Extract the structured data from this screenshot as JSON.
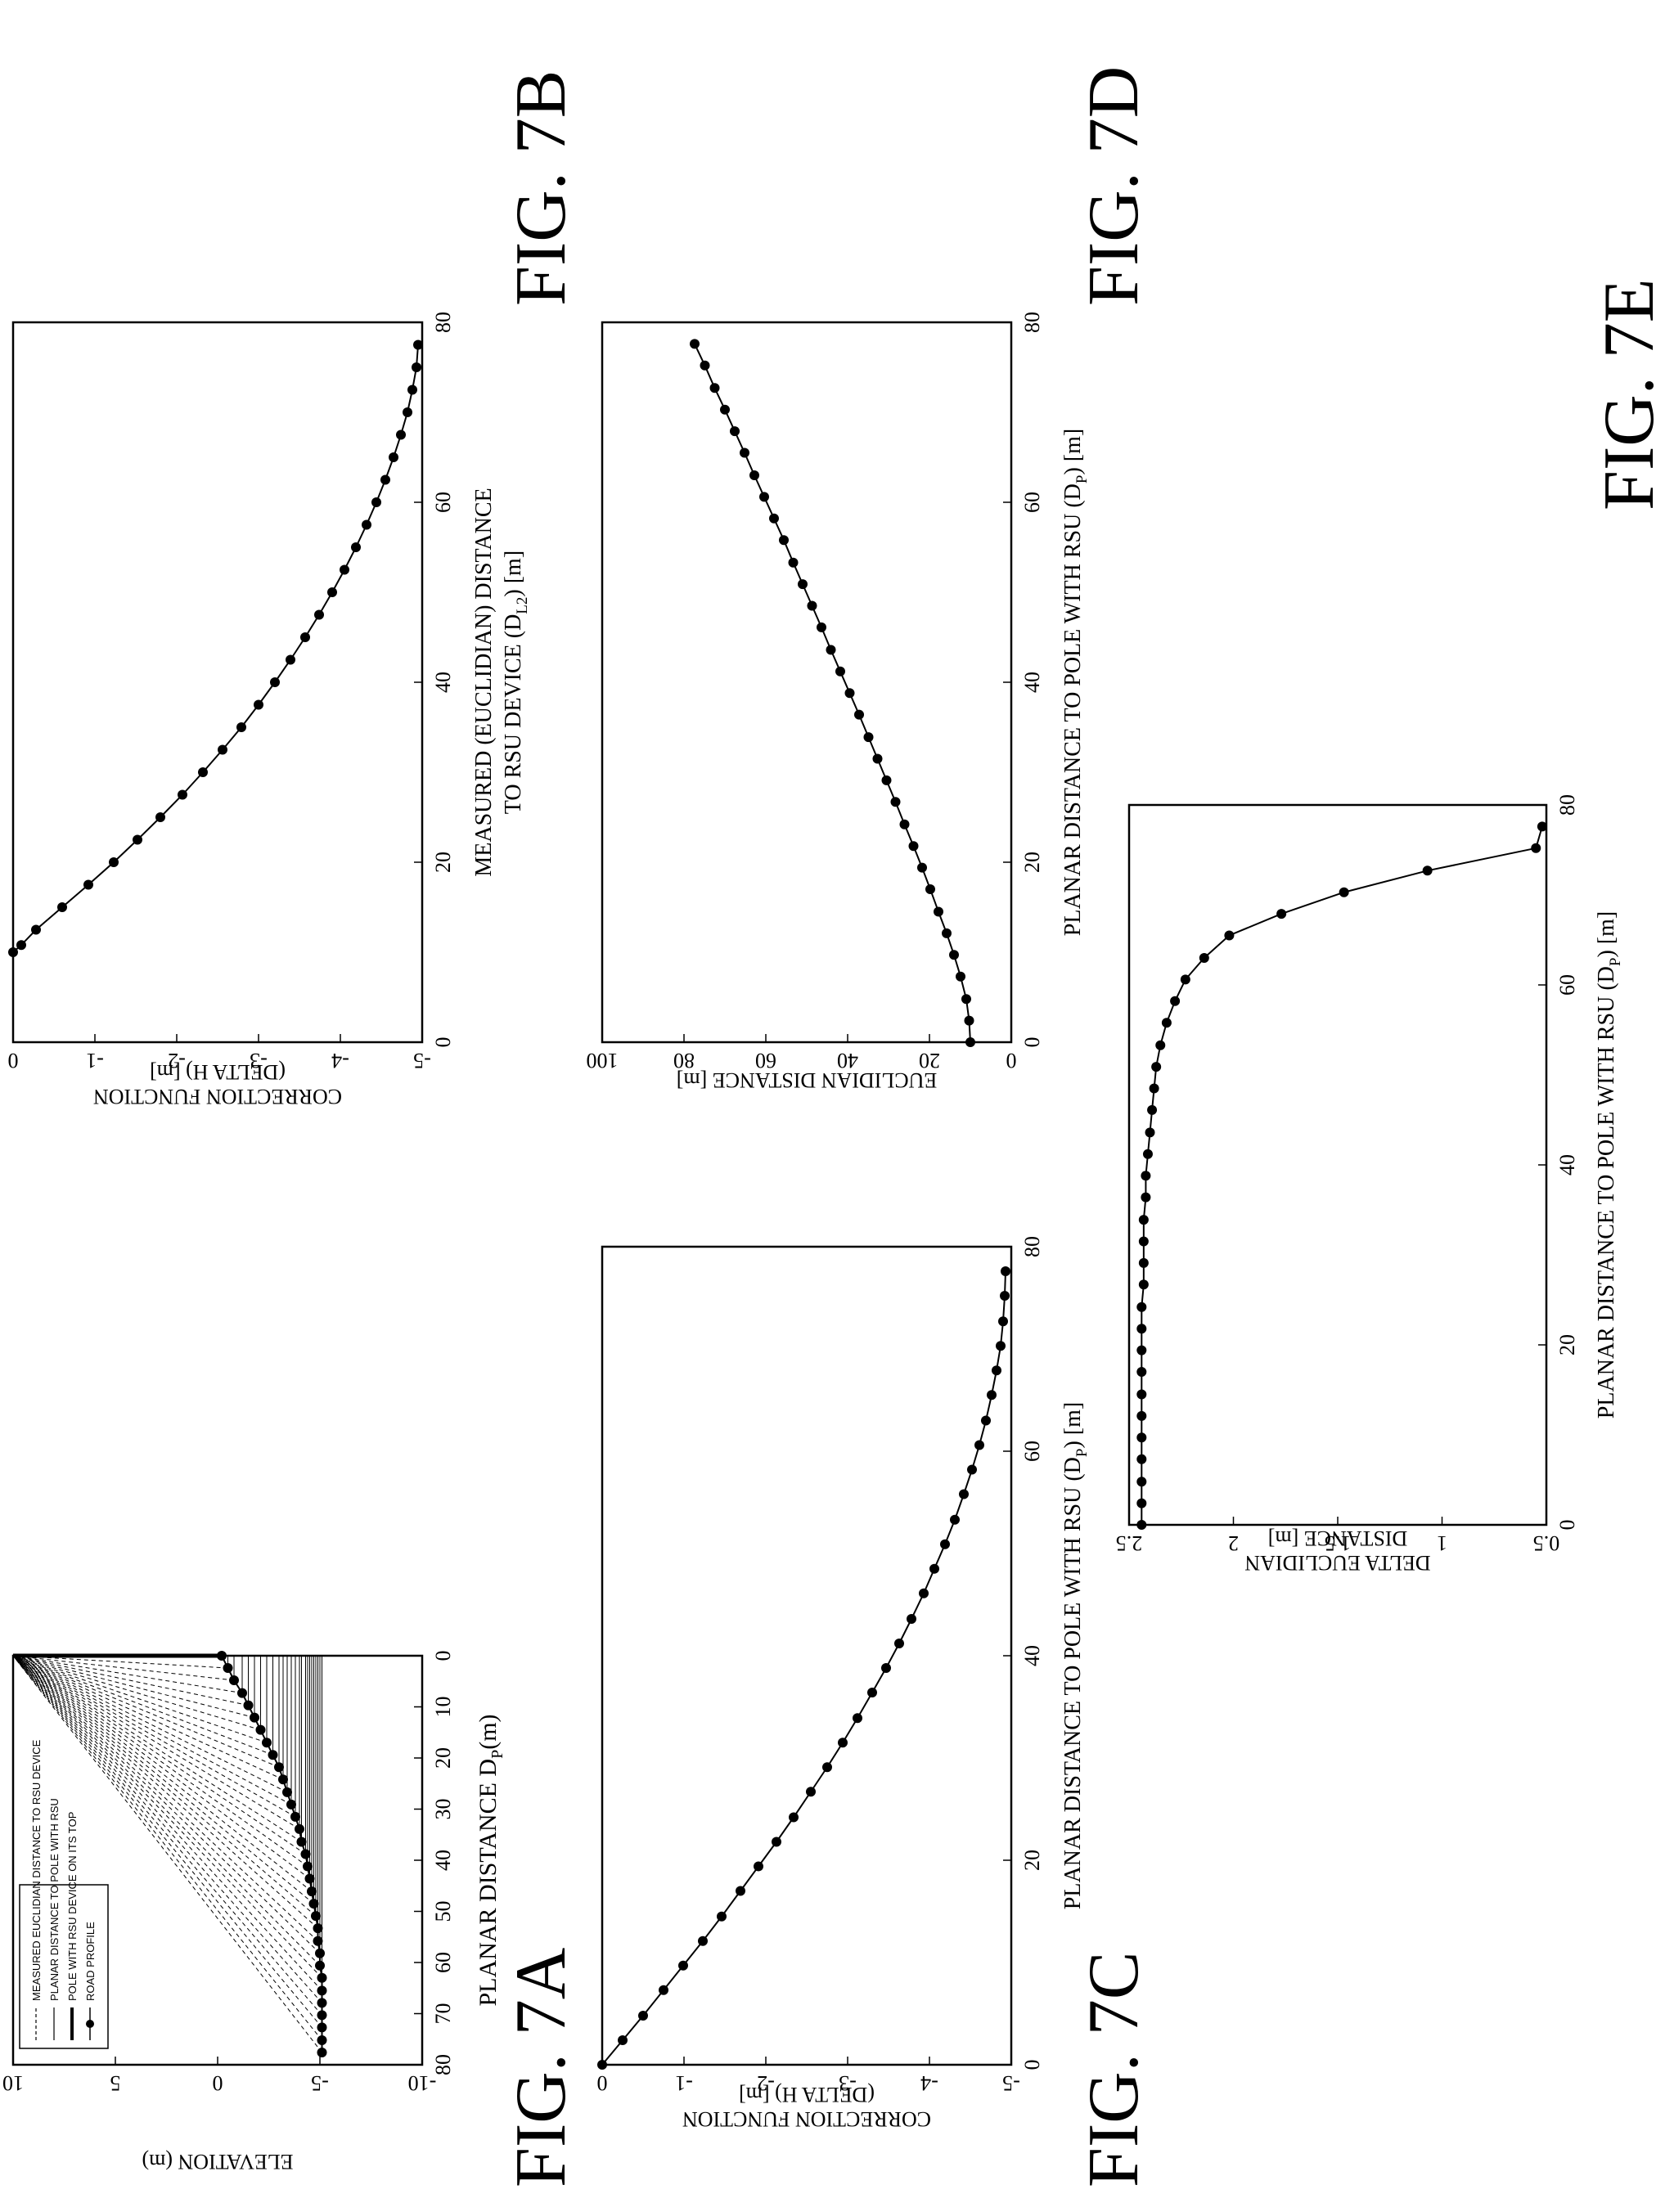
{
  "figures": {
    "7A": "FIG. 7A",
    "7B": "FIG. 7B",
    "7C": "FIG. 7C",
    "7D": "FIG. 7D",
    "7E": "FIG. 7E"
  },
  "chart_data": [
    {
      "id": "7A",
      "type": "line",
      "xlabel": "PLANAR DISTANCE D",
      "xlabel_sub": "P",
      "xlabel_tail": "(m)",
      "ylabel": "ELEVATION (m)",
      "xlim": [
        80,
        0
      ],
      "ylim": [
        -10,
        10
      ],
      "xticks": [
        "80",
        "70",
        "60",
        "50",
        "40",
        "30",
        "20",
        "10",
        "0"
      ],
      "yticks": [
        "-10",
        "-5",
        "0",
        "5",
        "10"
      ],
      "legend": [
        "MEASURED EUCLIDIAN DISTANCE TO RSU DEVICE",
        "PLANAR DISTANCE TO POLE WITH RSU",
        "POLE WITH RSU DEVICE ON ITS TOP",
        "ROAD PROFILE"
      ],
      "legend_position": "top-left",
      "road_profile": {
        "x": [
          0,
          2.4,
          4.8,
          7.3,
          9.7,
          12.1,
          14.5,
          17.0,
          19.4,
          21.8,
          24.2,
          26.7,
          29.1,
          31.5,
          33.9,
          36.4,
          38.8,
          41.2,
          43.6,
          46.1,
          48.5,
          50.9,
          53.3,
          55.8,
          58.2,
          60.6,
          63.0,
          65.5,
          67.9,
          70.3,
          72.7,
          75.2,
          77.6
        ],
        "y": [
          -0.2,
          -0.5,
          -0.8,
          -1.2,
          -1.5,
          -1.8,
          -2.1,
          -2.4,
          -2.7,
          -3.0,
          -3.2,
          -3.4,
          -3.6,
          -3.8,
          -4.0,
          -4.1,
          -4.3,
          -4.4,
          -4.5,
          -4.6,
          -4.7,
          -4.8,
          -4.9,
          -4.9,
          -5.0,
          -5.0,
          -5.1,
          -5.1,
          -5.1,
          -5.1,
          -5.1,
          -5.1,
          -5.1
        ]
      },
      "pole": {
        "x": 0,
        "y_bottom": 0,
        "y_top": 10
      }
    },
    {
      "id": "7B",
      "type": "line",
      "xlabel": "MEASURED (EUCLIDIAN) DISTANCE",
      "xlabel2": "TO RSU DEVICE (D",
      "xlabel2_sub": "L2",
      "xlabel2_tail": ") [m]",
      "ylabel": "CORRECTION FUNCTION",
      "ylabel2": "(DELTA H) [m]",
      "xlim": [
        0,
        80
      ],
      "ylim": [
        -5,
        0
      ],
      "xticks": [
        "0",
        "20",
        "40",
        "60",
        "80"
      ],
      "yticks": [
        "0",
        "-1",
        "-2",
        "-3",
        "-4",
        "-5"
      ],
      "x": [
        10,
        10.8,
        12.5,
        15,
        17.5,
        20,
        22.5,
        25,
        27.5,
        30,
        32.5,
        35,
        37.5,
        40,
        42.5,
        45,
        47.5,
        50,
        52.5,
        55,
        57.5,
        60,
        62.5,
        65,
        67.5,
        70,
        72.5,
        75,
        77.5
      ],
      "y": [
        0,
        -0.1,
        -0.28,
        -0.6,
        -0.92,
        -1.23,
        -1.52,
        -1.8,
        -2.07,
        -2.32,
        -2.56,
        -2.79,
        -3.0,
        -3.2,
        -3.39,
        -3.57,
        -3.74,
        -3.9,
        -4.05,
        -4.19,
        -4.32,
        -4.44,
        -4.55,
        -4.65,
        -4.74,
        -4.82,
        -4.88,
        -4.93,
        -4.95
      ]
    },
    {
      "id": "7C",
      "type": "line",
      "xlabel": "PLANAR DISTANCE TO POLE WITH RSU (D",
      "xlabel_sub": "P",
      "xlabel_tail": ") [m]",
      "ylabel": "CORRECTION FUNCTION",
      "ylabel2": "(DELTA H) [m]",
      "xlim": [
        0,
        80
      ],
      "ylim": [
        -5,
        0
      ],
      "xticks": [
        "0",
        "20",
        "40",
        "60",
        "80"
      ],
      "yticks": [
        "0",
        "-1",
        "-2",
        "-3",
        "-4",
        "-5"
      ],
      "x": [
        0,
        2.4,
        4.8,
        7.3,
        9.7,
        12.1,
        14.5,
        17.0,
        19.4,
        21.8,
        24.2,
        26.7,
        29.1,
        31.5,
        33.9,
        36.4,
        38.8,
        41.2,
        43.6,
        46.1,
        48.5,
        50.9,
        53.3,
        55.8,
        58.2,
        60.6,
        63.0,
        65.5,
        67.9,
        70.3,
        72.7,
        75.2,
        77.6
      ],
      "y": [
        0,
        -0.25,
        -0.5,
        -0.75,
        -0.99,
        -1.23,
        -1.46,
        -1.69,
        -1.91,
        -2.13,
        -2.34,
        -2.55,
        -2.75,
        -2.94,
        -3.12,
        -3.3,
        -3.47,
        -3.63,
        -3.78,
        -3.93,
        -4.06,
        -4.19,
        -4.31,
        -4.42,
        -4.52,
        -4.61,
        -4.69,
        -4.76,
        -4.82,
        -4.87,
        -4.9,
        -4.92,
        -4.93
      ]
    },
    {
      "id": "7D",
      "type": "line",
      "xlabel": "PLANAR DISTANCE TO POLE WITH RSU (D",
      "xlabel_sub": "P",
      "xlabel_tail": ") [m]",
      "ylabel": "EUCLIDIAN DISTANCE [m]",
      "xlim": [
        0,
        80
      ],
      "ylim": [
        0,
        100
      ],
      "xticks": [
        "0",
        "20",
        "40",
        "60",
        "80"
      ],
      "yticks": [
        "0",
        "20",
        "40",
        "60",
        "80",
        "100"
      ],
      "x": [
        0,
        2.4,
        4.8,
        7.3,
        9.7,
        12.1,
        14.5,
        17.0,
        19.4,
        21.8,
        24.2,
        26.7,
        29.1,
        31.5,
        33.9,
        36.4,
        38.8,
        41.2,
        43.6,
        46.1,
        48.5,
        50.9,
        53.3,
        55.8,
        58.2,
        60.6,
        63.0,
        65.5,
        67.9,
        70.3,
        72.7,
        75.2,
        77.6
      ],
      "y": [
        10.0,
        10.3,
        11.0,
        12.4,
        14.0,
        15.8,
        17.8,
        19.8,
        21.8,
        23.9,
        26.1,
        28.3,
        30.5,
        32.7,
        34.9,
        37.2,
        39.5,
        41.8,
        44.1,
        46.4,
        48.7,
        51.0,
        53.3,
        55.6,
        58.0,
        60.4,
        62.8,
        65.2,
        67.6,
        70.0,
        72.5,
        74.9,
        77.4
      ]
    },
    {
      "id": "7E",
      "type": "line",
      "xlabel": "PLANAR DISTANCE TO POLE WITH RSU (D",
      "xlabel_sub": "P",
      "xlabel_tail": ") [m]",
      "ylabel": "DELTA EUCLIDIAN",
      "ylabel2": "DISTANCE [m]",
      "xlim": [
        0,
        80
      ],
      "ylim": [
        0.5,
        2.5
      ],
      "xticks": [
        "0",
        "20",
        "40",
        "60",
        "80"
      ],
      "yticks": [
        "0.5",
        "1",
        "1.5",
        "2",
        "2.5"
      ],
      "x": [
        0,
        2.4,
        4.8,
        7.3,
        9.7,
        12.1,
        14.5,
        17.0,
        19.4,
        21.8,
        24.2,
        26.7,
        29.1,
        31.5,
        33.9,
        36.4,
        38.8,
        41.2,
        43.6,
        46.1,
        48.5,
        50.9,
        53.3,
        55.8,
        58.2,
        60.6,
        63.0,
        65.5,
        67.9,
        70.3,
        72.7,
        75.2,
        77.6
      ],
      "y": [
        2.44,
        2.44,
        2.44,
        2.44,
        2.44,
        2.44,
        2.44,
        2.44,
        2.44,
        2.44,
        2.44,
        2.43,
        2.43,
        2.43,
        2.43,
        2.42,
        2.42,
        2.41,
        2.4,
        2.39,
        2.38,
        2.37,
        2.35,
        2.32,
        2.28,
        2.23,
        2.14,
        2.02,
        1.77,
        1.47,
        1.07,
        0.55,
        0.52
      ]
    }
  ]
}
